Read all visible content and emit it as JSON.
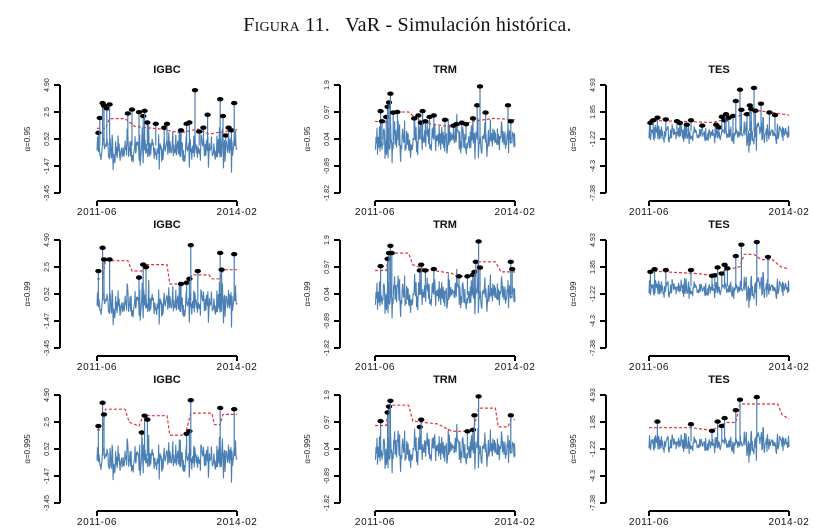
{
  "figure": {
    "label": "Figura 11.",
    "caption": "VaR - Simulación histórica."
  },
  "chart_data": {
    "type": "line",
    "title": "VaR - Simulación histórica.",
    "x_range": [
      "2011-06",
      "2014-02"
    ],
    "x_tick_labels": [
      "2011-06",
      "2014-02"
    ],
    "rows": [
      "α=0.95",
      "α=0.99",
      "α=0.995"
    ],
    "columns": [
      "IGBC",
      "TRM",
      "TES"
    ],
    "series_colors": {
      "returns": "#4a7fb5",
      "var": "#e0303a",
      "exceedance": "#000000"
    },
    "legend": "none",
    "grid": false,
    "panels": [
      {
        "asset": "IGBC",
        "alpha": "α=0.95",
        "ylim": [
          -3.45,
          4.9
        ],
        "y_tick_labels": [
          "-3.45",
          "-1.47",
          "0.52",
          "2.5",
          "4.90"
        ],
        "seed": 11,
        "volatility": 0.95,
        "mean": 0.0,
        "var_steps": [
          [
            0.0,
            1.55
          ],
          [
            0.06,
            1.55
          ],
          [
            0.09,
            2.3
          ],
          [
            0.2,
            2.3
          ],
          [
            0.27,
            1.7
          ],
          [
            0.45,
            1.5
          ],
          [
            0.6,
            1.2
          ],
          [
            0.72,
            1.5
          ],
          [
            0.8,
            1.1
          ],
          [
            0.88,
            1.25
          ],
          [
            1.0,
            1.45
          ]
        ],
        "exceedances": [
          [
            0.01,
            1.2
          ],
          [
            0.02,
            2.35
          ],
          [
            0.04,
            3.5
          ],
          [
            0.05,
            3.3
          ],
          [
            0.07,
            3.1
          ],
          [
            0.09,
            3.4
          ],
          [
            0.22,
            2.7
          ],
          [
            0.25,
            3.0
          ],
          [
            0.3,
            2.8
          ],
          [
            0.33,
            2.5
          ],
          [
            0.34,
            2.9
          ],
          [
            0.36,
            2.0
          ],
          [
            0.42,
            1.9
          ],
          [
            0.48,
            1.6
          ],
          [
            0.5,
            1.9
          ],
          [
            0.6,
            1.4
          ],
          [
            0.64,
            1.9
          ],
          [
            0.66,
            2.0
          ],
          [
            0.7,
            4.5
          ],
          [
            0.73,
            1.3
          ],
          [
            0.76,
            1.6
          ],
          [
            0.79,
            2.6
          ],
          [
            0.88,
            3.8
          ],
          [
            0.9,
            2.5
          ],
          [
            0.92,
            1.0
          ],
          [
            0.94,
            1.6
          ],
          [
            0.96,
            1.4
          ],
          [
            0.98,
            3.5
          ]
        ]
      },
      {
        "asset": "TRM",
        "alpha": "α=0.95",
        "ylim": [
          -1.82,
          1.9
        ],
        "y_tick_labels": [
          "-1.82",
          "-0.89",
          "0.04",
          "0.97",
          "1.9"
        ],
        "seed": 23,
        "volatility": 0.42,
        "mean": 0.0,
        "var_steps": [
          [
            0.0,
            0.65
          ],
          [
            0.08,
            0.6
          ],
          [
            0.1,
            0.97
          ],
          [
            0.24,
            0.97
          ],
          [
            0.28,
            0.8
          ],
          [
            0.35,
            0.6
          ],
          [
            0.55,
            0.45
          ],
          [
            0.7,
            0.65
          ],
          [
            0.85,
            0.75
          ],
          [
            1.0,
            0.7
          ]
        ],
        "exceedances": [
          [
            0.04,
            1.0
          ],
          [
            0.05,
            0.65
          ],
          [
            0.08,
            0.8
          ],
          [
            0.09,
            1.15
          ],
          [
            0.1,
            1.3
          ],
          [
            0.11,
            1.6
          ],
          [
            0.13,
            0.95
          ],
          [
            0.16,
            0.97
          ],
          [
            0.28,
            0.75
          ],
          [
            0.31,
            0.85
          ],
          [
            0.33,
            0.6
          ],
          [
            0.34,
            1.0
          ],
          [
            0.36,
            0.65
          ],
          [
            0.39,
            0.8
          ],
          [
            0.42,
            0.85
          ],
          [
            0.5,
            0.7
          ],
          [
            0.56,
            0.5
          ],
          [
            0.58,
            0.55
          ],
          [
            0.62,
            0.6
          ],
          [
            0.65,
            0.55
          ],
          [
            0.7,
            0.75
          ],
          [
            0.73,
            1.2
          ],
          [
            0.75,
            1.85
          ],
          [
            0.79,
            0.95
          ],
          [
            0.95,
            1.2
          ],
          [
            0.97,
            0.65
          ]
        ]
      },
      {
        "asset": "TES",
        "alpha": "α=0.95",
        "ylim": [
          -7.38,
          4.93
        ],
        "y_tick_labels": [
          "-7.38",
          "-4.3",
          "-1.22",
          "1.85",
          "4.93"
        ],
        "seed": 37,
        "volatility": 0.9,
        "mean": 0.0,
        "var_steps": [
          [
            0.0,
            0.9
          ],
          [
            0.3,
            0.75
          ],
          [
            0.45,
            0.65
          ],
          [
            0.6,
            1.2
          ],
          [
            0.7,
            1.7
          ],
          [
            0.78,
            2.0
          ],
          [
            0.88,
            1.8
          ],
          [
            1.0,
            1.5
          ]
        ],
        "exceedances": [
          [
            0.01,
            0.6
          ],
          [
            0.03,
            0.9
          ],
          [
            0.06,
            1.2
          ],
          [
            0.12,
            1.0
          ],
          [
            0.2,
            0.8
          ],
          [
            0.22,
            0.6
          ],
          [
            0.27,
            0.4
          ],
          [
            0.3,
            0.9
          ],
          [
            0.38,
            0.3
          ],
          [
            0.48,
            0.4
          ],
          [
            0.5,
            0.1
          ],
          [
            0.52,
            1.3
          ],
          [
            0.54,
            0.9
          ],
          [
            0.55,
            1.6
          ],
          [
            0.57,
            1.2
          ],
          [
            0.6,
            1.4
          ],
          [
            0.62,
            3.1
          ],
          [
            0.65,
            4.4
          ],
          [
            0.66,
            2.1
          ],
          [
            0.7,
            1.6
          ],
          [
            0.72,
            2.6
          ],
          [
            0.73,
            2.2
          ],
          [
            0.75,
            4.6
          ],
          [
            0.76,
            2.0
          ],
          [
            0.8,
            2.8
          ],
          [
            0.86,
            1.8
          ],
          [
            0.9,
            1.5
          ]
        ]
      },
      {
        "asset": "IGBC",
        "alpha": "α=0.99",
        "ylim": [
          -3.45,
          4.9
        ],
        "y_tick_labels": [
          "-3.45",
          "-1.47",
          "0.52",
          "2.5",
          "4.90"
        ],
        "seed": 11,
        "volatility": 0.95,
        "mean": 0.0,
        "var_steps": [
          [
            0.0,
            1.9
          ],
          [
            0.04,
            1.9
          ],
          [
            0.06,
            3.3
          ],
          [
            0.22,
            3.3
          ],
          [
            0.25,
            2.5
          ],
          [
            0.32,
            2.5
          ],
          [
            0.35,
            3.0
          ],
          [
            0.5,
            3.0
          ],
          [
            0.52,
            1.5
          ],
          [
            0.65,
            1.5
          ],
          [
            0.68,
            2.2
          ],
          [
            0.8,
            2.2
          ],
          [
            0.82,
            1.9
          ],
          [
            0.88,
            1.9
          ],
          [
            0.9,
            2.6
          ],
          [
            1.0,
            2.6
          ]
        ],
        "exceedances": [
          [
            0.01,
            2.5
          ],
          [
            0.04,
            4.3
          ],
          [
            0.05,
            3.4
          ],
          [
            0.09,
            3.4
          ],
          [
            0.3,
            2.0
          ],
          [
            0.33,
            3.0
          ],
          [
            0.35,
            2.8
          ],
          [
            0.6,
            1.5
          ],
          [
            0.64,
            1.6
          ],
          [
            0.66,
            1.9
          ],
          [
            0.67,
            4.5
          ],
          [
            0.72,
            2.5
          ],
          [
            0.88,
            3.9
          ],
          [
            0.89,
            2.6
          ],
          [
            0.98,
            3.8
          ]
        ]
      },
      {
        "asset": "TRM",
        "alpha": "α=0.99",
        "ylim": [
          -1.82,
          1.9
        ],
        "y_tick_labels": [
          "-1.82",
          "-0.89",
          "0.04",
          "0.97",
          "1.9"
        ],
        "seed": 23,
        "volatility": 0.42,
        "mean": 0.0,
        "var_steps": [
          [
            0.0,
            0.85
          ],
          [
            0.08,
            0.85
          ],
          [
            0.1,
            1.45
          ],
          [
            0.24,
            1.45
          ],
          [
            0.27,
            1.05
          ],
          [
            0.35,
            0.9
          ],
          [
            0.55,
            0.75
          ],
          [
            0.58,
            0.65
          ],
          [
            0.72,
            0.65
          ],
          [
            0.74,
            1.15
          ],
          [
            0.86,
            1.15
          ],
          [
            0.9,
            0.8
          ],
          [
            1.0,
            0.8
          ]
        ],
        "exceedances": [
          [
            0.04,
            1.0
          ],
          [
            0.09,
            1.25
          ],
          [
            0.1,
            1.45
          ],
          [
            0.11,
            1.7
          ],
          [
            0.12,
            1.45
          ],
          [
            0.32,
            0.85
          ],
          [
            0.33,
            1.05
          ],
          [
            0.36,
            0.85
          ],
          [
            0.42,
            0.9
          ],
          [
            0.6,
            0.65
          ],
          [
            0.66,
            0.65
          ],
          [
            0.7,
            0.7
          ],
          [
            0.71,
            0.8
          ],
          [
            0.72,
            1.15
          ],
          [
            0.74,
            1.85
          ],
          [
            0.75,
            0.95
          ],
          [
            0.97,
            1.15
          ],
          [
            0.98,
            0.9
          ]
        ]
      },
      {
        "asset": "TES",
        "alpha": "α=0.99",
        "ylim": [
          -7.38,
          4.93
        ],
        "y_tick_labels": [
          "-7.38",
          "-4.3",
          "-1.22",
          "1.85",
          "4.93"
        ],
        "seed": 37,
        "volatility": 0.9,
        "mean": 0.0,
        "var_steps": [
          [
            0.0,
            1.4
          ],
          [
            0.35,
            1.1
          ],
          [
            0.45,
            0.9
          ],
          [
            0.55,
            1.5
          ],
          [
            0.65,
            1.9
          ],
          [
            0.68,
            3.3
          ],
          [
            0.75,
            3.3
          ],
          [
            0.8,
            2.7
          ],
          [
            0.88,
            2.7
          ],
          [
            0.94,
            1.9
          ],
          [
            1.0,
            1.6
          ]
        ],
        "exceedances": [
          [
            0.01,
            1.3
          ],
          [
            0.04,
            1.6
          ],
          [
            0.12,
            1.5
          ],
          [
            0.3,
            1.5
          ],
          [
            0.45,
            0.85
          ],
          [
            0.47,
            0.9
          ],
          [
            0.49,
            1.8
          ],
          [
            0.52,
            1.1
          ],
          [
            0.54,
            2.1
          ],
          [
            0.56,
            1.7
          ],
          [
            0.62,
            3.1
          ],
          [
            0.66,
            4.4
          ],
          [
            0.77,
            4.7
          ],
          [
            0.85,
            3.0
          ]
        ]
      },
      {
        "asset": "IGBC",
        "alpha": "α=0.995",
        "ylim": [
          -3.45,
          4.9
        ],
        "y_tick_labels": [
          "-3.45",
          "-1.47",
          "0.52",
          "2.5",
          "4.90"
        ],
        "seed": 11,
        "volatility": 0.95,
        "mean": 0.0,
        "var_steps": [
          [
            0.0,
            2.2
          ],
          [
            0.04,
            2.2
          ],
          [
            0.06,
            3.8
          ],
          [
            0.2,
            3.8
          ],
          [
            0.23,
            2.8
          ],
          [
            0.3,
            2.5
          ],
          [
            0.33,
            3.3
          ],
          [
            0.5,
            3.3
          ],
          [
            0.52,
            1.8
          ],
          [
            0.63,
            1.8
          ],
          [
            0.67,
            3.5
          ],
          [
            0.82,
            3.5
          ],
          [
            0.84,
            2.6
          ],
          [
            0.88,
            2.6
          ],
          [
            0.9,
            3.4
          ],
          [
            1.0,
            3.4
          ]
        ],
        "exceedances": [
          [
            0.01,
            2.5
          ],
          [
            0.04,
            4.3
          ],
          [
            0.05,
            3.4
          ],
          [
            0.32,
            2.0
          ],
          [
            0.34,
            3.3
          ],
          [
            0.36,
            3.0
          ],
          [
            0.64,
            1.9
          ],
          [
            0.66,
            2.1
          ],
          [
            0.67,
            4.5
          ],
          [
            0.88,
            3.9
          ],
          [
            0.98,
            3.8
          ]
        ]
      },
      {
        "asset": "TRM",
        "alpha": "α=0.995",
        "ylim": [
          -1.82,
          1.9
        ],
        "y_tick_labels": [
          "-1.82",
          "-0.89",
          "0.04",
          "0.97",
          "1.9"
        ],
        "seed": 23,
        "volatility": 0.42,
        "mean": 0.0,
        "var_steps": [
          [
            0.0,
            0.85
          ],
          [
            0.08,
            0.85
          ],
          [
            0.1,
            1.55
          ],
          [
            0.24,
            1.55
          ],
          [
            0.27,
            1.0
          ],
          [
            0.45,
            0.9
          ],
          [
            0.55,
            0.65
          ],
          [
            0.7,
            0.65
          ],
          [
            0.74,
            1.45
          ],
          [
            0.86,
            1.45
          ],
          [
            0.88,
            0.8
          ],
          [
            0.95,
            0.8
          ],
          [
            0.97,
            1.05
          ],
          [
            1.0,
            1.05
          ]
        ],
        "exceedances": [
          [
            0.04,
            1.0
          ],
          [
            0.09,
            1.3
          ],
          [
            0.1,
            1.5
          ],
          [
            0.11,
            1.7
          ],
          [
            0.32,
            0.8
          ],
          [
            0.33,
            1.05
          ],
          [
            0.66,
            0.65
          ],
          [
            0.7,
            0.7
          ],
          [
            0.71,
            1.2
          ],
          [
            0.74,
            1.85
          ],
          [
            0.97,
            1.2
          ]
        ]
      },
      {
        "asset": "TES",
        "alpha": "α=0.995",
        "ylim": [
          -7.38,
          4.93
        ],
        "y_tick_labels": [
          "-7.38",
          "-4.3",
          "-1.22",
          "1.85",
          "4.93"
        ],
        "seed": 37,
        "volatility": 0.9,
        "mean": 0.0,
        "var_steps": [
          [
            0.0,
            1.2
          ],
          [
            0.3,
            1.2
          ],
          [
            0.45,
            0.9
          ],
          [
            0.55,
            1.8
          ],
          [
            0.62,
            1.8
          ],
          [
            0.65,
            3.9
          ],
          [
            0.78,
            3.9
          ],
          [
            0.92,
            3.9
          ],
          [
            0.95,
            2.7
          ],
          [
            1.0,
            2.2
          ]
        ],
        "exceedances": [
          [
            0.06,
            1.9
          ],
          [
            0.3,
            1.6
          ],
          [
            0.45,
            0.85
          ],
          [
            0.49,
            1.9
          ],
          [
            0.52,
            1.4
          ],
          [
            0.54,
            2.3
          ],
          [
            0.62,
            3.2
          ],
          [
            0.65,
            4.4
          ],
          [
            0.77,
            4.7
          ]
        ]
      }
    ]
  }
}
